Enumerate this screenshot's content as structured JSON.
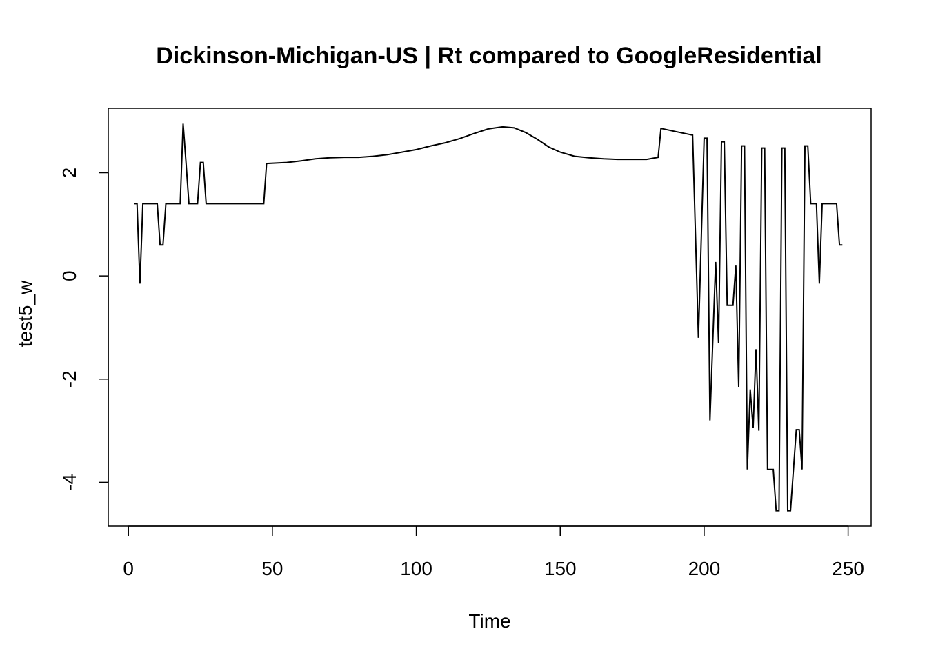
{
  "chart_data": {
    "type": "line",
    "title": "Dickinson-Michigan-US | Rt compared to GoogleResidential",
    "xlabel": "Time",
    "ylabel": "test5_w",
    "xlim": [
      -7,
      258
    ],
    "ylim": [
      -4.85,
      3.25
    ],
    "x_ticks": [
      0,
      50,
      100,
      150,
      200,
      250
    ],
    "y_ticks": [
      -4,
      -2,
      0,
      2
    ],
    "grid": false,
    "legend": "none",
    "line_color": "#000000",
    "series": [
      {
        "points": [
          [
            2,
            1.4
          ],
          [
            3,
            1.4
          ],
          [
            4,
            -0.15
          ],
          [
            5,
            1.4
          ],
          [
            6,
            1.4
          ],
          [
            7,
            1.4
          ],
          [
            8,
            1.4
          ],
          [
            9,
            1.4
          ],
          [
            10,
            1.4
          ],
          [
            11,
            0.6
          ],
          [
            12,
            0.6
          ],
          [
            13,
            1.4
          ],
          [
            14,
            1.4
          ],
          [
            15,
            1.4
          ],
          [
            16,
            1.4
          ],
          [
            17,
            1.4
          ],
          [
            18,
            1.4
          ],
          [
            19,
            2.95
          ],
          [
            20,
            2.2
          ],
          [
            21,
            1.4
          ],
          [
            22,
            1.4
          ],
          [
            23,
            1.4
          ],
          [
            24,
            1.4
          ],
          [
            25,
            2.2
          ],
          [
            26,
            2.2
          ],
          [
            27,
            1.4
          ],
          [
            30,
            1.4
          ],
          [
            35,
            1.4
          ],
          [
            40,
            1.4
          ],
          [
            45,
            1.4
          ],
          [
            47,
            1.4
          ],
          [
            48,
            2.18
          ],
          [
            55,
            2.2
          ],
          [
            60,
            2.23
          ],
          [
            65,
            2.27
          ],
          [
            70,
            2.29
          ],
          [
            75,
            2.3
          ],
          [
            80,
            2.3
          ],
          [
            85,
            2.32
          ],
          [
            90,
            2.35
          ],
          [
            95,
            2.4
          ],
          [
            100,
            2.45
          ],
          [
            105,
            2.52
          ],
          [
            110,
            2.58
          ],
          [
            115,
            2.66
          ],
          [
            120,
            2.76
          ],
          [
            125,
            2.85
          ],
          [
            130,
            2.89
          ],
          [
            134,
            2.87
          ],
          [
            138,
            2.78
          ],
          [
            142,
            2.65
          ],
          [
            146,
            2.5
          ],
          [
            150,
            2.4
          ],
          [
            155,
            2.32
          ],
          [
            160,
            2.29
          ],
          [
            165,
            2.27
          ],
          [
            170,
            2.26
          ],
          [
            175,
            2.26
          ],
          [
            180,
            2.26
          ],
          [
            184,
            2.3
          ],
          [
            185,
            2.86
          ],
          [
            190,
            2.8
          ],
          [
            196,
            2.73
          ],
          [
            198,
            -1.2
          ],
          [
            200,
            2.67
          ],
          [
            201,
            2.67
          ],
          [
            202,
            -2.8
          ],
          [
            204,
            0.27
          ],
          [
            205,
            -1.3
          ],
          [
            206,
            2.6
          ],
          [
            207,
            2.6
          ],
          [
            208,
            -0.57
          ],
          [
            210,
            -0.57
          ],
          [
            211,
            0.2
          ],
          [
            212,
            -2.15
          ],
          [
            213,
            2.52
          ],
          [
            214,
            2.52
          ],
          [
            215,
            -3.75
          ],
          [
            216,
            -2.2
          ],
          [
            217,
            -2.95
          ],
          [
            218,
            -1.42
          ],
          [
            219,
            -3.0
          ],
          [
            220,
            2.48
          ],
          [
            221,
            2.48
          ],
          [
            222,
            -3.75
          ],
          [
            224,
            -3.75
          ],
          [
            225,
            -4.55
          ],
          [
            226,
            -4.55
          ],
          [
            227,
            2.48
          ],
          [
            228,
            2.48
          ],
          [
            229,
            -4.55
          ],
          [
            230,
            -4.55
          ],
          [
            232,
            -2.98
          ],
          [
            233,
            -2.98
          ],
          [
            234,
            -3.75
          ],
          [
            235,
            2.52
          ],
          [
            236,
            2.52
          ],
          [
            237,
            1.4
          ],
          [
            239,
            1.4
          ],
          [
            240,
            -0.15
          ],
          [
            241,
            1.4
          ],
          [
            242,
            1.4
          ],
          [
            244,
            1.4
          ],
          [
            246,
            1.4
          ],
          [
            247,
            0.6
          ],
          [
            248,
            0.6
          ]
        ]
      }
    ]
  }
}
